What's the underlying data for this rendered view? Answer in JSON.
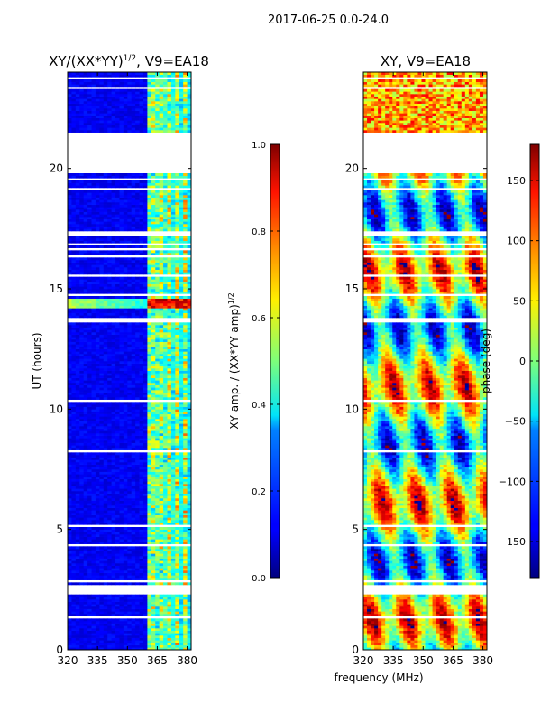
{
  "suptitle": "2017-06-25 0.0-24.0",
  "shared_xlabel": "frequency (MHz)",
  "colors": {
    "background": "#ffffff",
    "axes": "#000000",
    "gap": "#ffffff"
  },
  "chart_data": [
    {
      "type": "heatmap",
      "title": "XY/(XX*YY)",
      "title_exponent": "1/2",
      "title_suffix": ", V9=EA18",
      "xlabel": "",
      "ylabel": "UT (hours)",
      "xlim": [
        320,
        382
      ],
      "ylim": [
        0,
        24
      ],
      "xticks": [
        320,
        335,
        350,
        365,
        380
      ],
      "yticks": [
        0,
        5,
        10,
        15,
        20
      ],
      "xtick_labels": [
        "320",
        "335",
        "350",
        "365",
        "380"
      ],
      "ytick_labels": [
        "0",
        "5",
        "10",
        "15",
        "20"
      ],
      "colormap": "jet",
      "clim": [
        0.0,
        1.0
      ],
      "data_gaps_hours": [
        [
          2.3,
          2.7
        ],
        [
          19.8,
          21.5
        ]
      ],
      "bright_band_hours": [
        14.2,
        14.6
      ],
      "active_freq_range_mhz": [
        360,
        382
      ],
      "colorbar": {
        "label": "XY amp. / (XX*YY amp)",
        "label_exponent": "1/2",
        "range": [
          0.0,
          1.0
        ],
        "ticks": [
          0.0,
          0.2,
          0.4,
          0.6,
          0.8,
          1.0
        ],
        "tick_labels": [
          "0.0",
          "0.2",
          "0.4",
          "0.6",
          "0.8",
          "1.0"
        ]
      }
    },
    {
      "type": "heatmap",
      "title": "XY, V9=EA18",
      "xlabel": "frequency (MHz)",
      "ylabel": "",
      "xlim": [
        320,
        382
      ],
      "ylim": [
        0,
        24
      ],
      "xticks": [
        320,
        335,
        350,
        365,
        380
      ],
      "yticks": [
        0,
        5,
        10,
        15,
        20
      ],
      "xtick_labels": [
        "320",
        "335",
        "350",
        "365",
        "380"
      ],
      "ytick_labels": [
        "0",
        "5",
        "10",
        "15",
        "20"
      ],
      "colormap": "jet",
      "clim": [
        -180,
        180
      ],
      "data_gaps_hours": [
        [
          2.3,
          2.7
        ],
        [
          19.8,
          21.5
        ]
      ],
      "colorbar": {
        "label": "phase (deg)",
        "range": [
          -180,
          180
        ],
        "ticks": [
          -150,
          -100,
          -50,
          0,
          50,
          100,
          150
        ],
        "tick_labels": [
          "−150",
          "−100",
          "−50",
          "0",
          "50",
          "100",
          "150"
        ]
      }
    }
  ]
}
